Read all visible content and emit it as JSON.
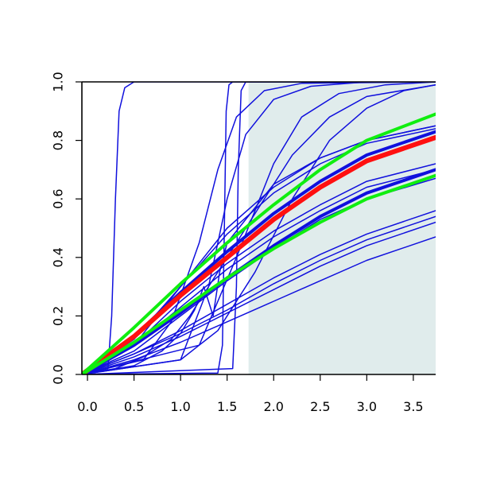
{
  "chart_data": {
    "type": "line",
    "title": "",
    "xlabel": "",
    "ylabel": "",
    "xlim": [
      -0.06,
      3.74
    ],
    "ylim": [
      0.0,
      1.0
    ],
    "x_ticks": [
      "0.0",
      "0.5",
      "1.0",
      "1.5",
      "2.0",
      "2.5",
      "3.0",
      "3.5"
    ],
    "y_ticks": [
      "0.0",
      "0.2",
      "0.4",
      "0.6",
      "0.8",
      "1.0"
    ],
    "x_tick_values": [
      0.0,
      0.5,
      1.0,
      1.5,
      2.0,
      2.5,
      3.0,
      3.5
    ],
    "y_tick_values": [
      0.0,
      0.2,
      0.4,
      0.6,
      0.8,
      1.0
    ],
    "shaded_region": {
      "x_start": 1.73,
      "x_end": 3.74,
      "y_start": 0.0,
      "y_end": 1.0,
      "color": "#e0ecec"
    },
    "colors": {
      "blue": "#1010dd",
      "red": "#ff1010",
      "green": "#10ee10"
    },
    "series": [
      {
        "color": "blue",
        "width": 1.5,
        "points": [
          [
            -0.06,
            0
          ],
          [
            0.22,
            0.02
          ],
          [
            0.26,
            0.2
          ],
          [
            0.3,
            0.6
          ],
          [
            0.34,
            0.9
          ],
          [
            0.4,
            0.98
          ],
          [
            0.5,
            1.0
          ],
          [
            3.74,
            1.0
          ]
        ]
      },
      {
        "color": "blue",
        "width": 1.5,
        "points": [
          [
            -0.06,
            0
          ],
          [
            1.4,
            0.005
          ],
          [
            1.45,
            0.1
          ],
          [
            1.47,
            0.5
          ],
          [
            1.49,
            0.9
          ],
          [
            1.52,
            0.99
          ],
          [
            1.56,
            1.0
          ],
          [
            3.74,
            1.0
          ]
        ]
      },
      {
        "color": "blue",
        "width": 1.5,
        "points": [
          [
            -0.06,
            0
          ],
          [
            1.56,
            0.02
          ],
          [
            1.6,
            0.3
          ],
          [
            1.62,
            0.7
          ],
          [
            1.65,
            0.97
          ],
          [
            1.7,
            1.0
          ],
          [
            3.74,
            1.0
          ]
        ]
      },
      {
        "color": "blue",
        "width": 1.5,
        "points": [
          [
            -0.06,
            0
          ],
          [
            1.0,
            0.05
          ],
          [
            1.3,
            0.3
          ],
          [
            1.5,
            0.6
          ],
          [
            1.7,
            0.82
          ],
          [
            2.0,
            0.94
          ],
          [
            2.4,
            0.985
          ],
          [
            3.0,
            1.0
          ],
          [
            3.74,
            1.0
          ]
        ]
      },
      {
        "color": "blue",
        "width": 1.5,
        "points": [
          [
            -0.06,
            0
          ],
          [
            0.6,
            0.05
          ],
          [
            0.9,
            0.18
          ],
          [
            1.2,
            0.45
          ],
          [
            1.4,
            0.7
          ],
          [
            1.6,
            0.88
          ],
          [
            1.9,
            0.97
          ],
          [
            2.3,
            0.995
          ],
          [
            3.74,
            1.0
          ]
        ]
      },
      {
        "color": "blue",
        "width": 1.5,
        "points": [
          [
            -0.06,
            0
          ],
          [
            1.2,
            0.1
          ],
          [
            1.6,
            0.4
          ],
          [
            2.0,
            0.72
          ],
          [
            2.3,
            0.88
          ],
          [
            2.7,
            0.96
          ],
          [
            3.2,
            0.99
          ],
          [
            3.74,
            1.0
          ]
        ]
      },
      {
        "color": "blue",
        "width": 1.5,
        "points": [
          [
            -0.06,
            0
          ],
          [
            1.0,
            0.05
          ],
          [
            1.4,
            0.15
          ],
          [
            1.8,
            0.35
          ],
          [
            2.2,
            0.6
          ],
          [
            2.6,
            0.8
          ],
          [
            3.0,
            0.91
          ],
          [
            3.4,
            0.97
          ],
          [
            3.74,
            0.99
          ]
        ]
      },
      {
        "color": "blue",
        "width": 1.5,
        "points": [
          [
            -0.06,
            0
          ],
          [
            0.5,
            0.1
          ],
          [
            1.0,
            0.3
          ],
          [
            1.5,
            0.5
          ],
          [
            2.0,
            0.64
          ],
          [
            2.5,
            0.74
          ],
          [
            3.0,
            0.8
          ],
          [
            3.74,
            0.85
          ]
        ]
      },
      {
        "color": "blue",
        "width": 1.5,
        "points": [
          [
            -0.06,
            0
          ],
          [
            0.5,
            0.12
          ],
          [
            1.0,
            0.3
          ],
          [
            1.5,
            0.48
          ],
          [
            2.0,
            0.62
          ],
          [
            2.5,
            0.72
          ],
          [
            3.0,
            0.79
          ],
          [
            3.74,
            0.84
          ]
        ]
      },
      {
        "color": "blue",
        "width": 1.5,
        "points": [
          [
            -0.06,
            0
          ],
          [
            0.5,
            0.1
          ],
          [
            1.0,
            0.25
          ],
          [
            1.5,
            0.38
          ],
          [
            2.0,
            0.49
          ],
          [
            2.5,
            0.58
          ],
          [
            3.0,
            0.66
          ],
          [
            3.74,
            0.72
          ]
        ]
      },
      {
        "color": "blue",
        "width": 1.5,
        "points": [
          [
            -0.06,
            0
          ],
          [
            0.5,
            0.1
          ],
          [
            1.0,
            0.23
          ],
          [
            1.5,
            0.36
          ],
          [
            2.0,
            0.47
          ],
          [
            2.5,
            0.56
          ],
          [
            3.0,
            0.64
          ],
          [
            3.74,
            0.7
          ]
        ]
      },
      {
        "color": "blue",
        "width": 1.5,
        "points": [
          [
            -0.06,
            0
          ],
          [
            0.5,
            0.08
          ],
          [
            1.0,
            0.2
          ],
          [
            1.5,
            0.32
          ],
          [
            2.0,
            0.43
          ],
          [
            2.5,
            0.53
          ],
          [
            3.0,
            0.6
          ],
          [
            3.74,
            0.67
          ]
        ]
      },
      {
        "color": "blue",
        "width": 1.5,
        "points": [
          [
            -0.06,
            0
          ],
          [
            0.5,
            0.07
          ],
          [
            1.0,
            0.15
          ],
          [
            1.5,
            0.24
          ],
          [
            2.0,
            0.33
          ],
          [
            2.5,
            0.41
          ],
          [
            3.0,
            0.48
          ],
          [
            3.74,
            0.56
          ]
        ]
      },
      {
        "color": "blue",
        "width": 1.5,
        "points": [
          [
            -0.06,
            0
          ],
          [
            0.5,
            0.07
          ],
          [
            1.0,
            0.14
          ],
          [
            1.5,
            0.22
          ],
          [
            2.0,
            0.31
          ],
          [
            2.5,
            0.39
          ],
          [
            3.0,
            0.46
          ],
          [
            3.74,
            0.54
          ]
        ]
      },
      {
        "color": "blue",
        "width": 1.5,
        "points": [
          [
            -0.06,
            0
          ],
          [
            0.5,
            0.06
          ],
          [
            1.0,
            0.13
          ],
          [
            1.5,
            0.21
          ],
          [
            2.0,
            0.29
          ],
          [
            2.5,
            0.37
          ],
          [
            3.0,
            0.44
          ],
          [
            3.74,
            0.52
          ]
        ]
      },
      {
        "color": "blue",
        "width": 1.5,
        "points": [
          [
            -0.06,
            0
          ],
          [
            0.5,
            0.05
          ],
          [
            1.0,
            0.11
          ],
          [
            1.5,
            0.18
          ],
          [
            2.0,
            0.25
          ],
          [
            2.5,
            0.32
          ],
          [
            3.0,
            0.39
          ],
          [
            3.74,
            0.47
          ]
        ]
      },
      {
        "color": "blue",
        "width": 1.5,
        "points": [
          [
            -0.06,
            0
          ],
          [
            0.3,
            0.02
          ],
          [
            0.6,
            0.06
          ],
          [
            0.9,
            0.12
          ],
          [
            1.1,
            0.2
          ],
          [
            1.3,
            0.3
          ],
          [
            1.5,
            0.4
          ],
          [
            1.8,
            0.55
          ],
          [
            2.2,
            0.75
          ],
          [
            2.6,
            0.88
          ],
          [
            3.0,
            0.95
          ],
          [
            3.74,
            0.99
          ]
        ]
      },
      {
        "color": "blue",
        "width": 1.5,
        "points": [
          [
            -0.06,
            0
          ],
          [
            0.5,
            0.03
          ],
          [
            0.8,
            0.08
          ],
          [
            1.0,
            0.14
          ],
          [
            1.15,
            0.22
          ],
          [
            1.25,
            0.3
          ],
          [
            1.35,
            0.2
          ],
          [
            1.42,
            0.35
          ],
          [
            1.5,
            0.45
          ],
          [
            2.0,
            0.65
          ],
          [
            2.5,
            0.74
          ],
          [
            3.0,
            0.8
          ],
          [
            3.74,
            0.85
          ]
        ]
      },
      {
        "color": "blue",
        "width": 4,
        "points": [
          [
            -0.06,
            0
          ],
          [
            0.5,
            0.13
          ],
          [
            1.0,
            0.28
          ],
          [
            1.5,
            0.42
          ],
          [
            2.0,
            0.55
          ],
          [
            2.5,
            0.66
          ],
          [
            3.0,
            0.75
          ],
          [
            3.74,
            0.83
          ]
        ]
      },
      {
        "color": "blue",
        "width": 4,
        "points": [
          [
            -0.06,
            0
          ],
          [
            0.5,
            0.1
          ],
          [
            1.0,
            0.21
          ],
          [
            1.5,
            0.33
          ],
          [
            2.0,
            0.44
          ],
          [
            2.5,
            0.54
          ],
          [
            3.0,
            0.62
          ],
          [
            3.74,
            0.7
          ]
        ]
      },
      {
        "color": "red",
        "width": 6,
        "points": [
          [
            -0.06,
            0
          ],
          [
            0.5,
            0.13
          ],
          [
            1.0,
            0.27
          ],
          [
            1.5,
            0.4
          ],
          [
            2.0,
            0.53
          ],
          [
            2.5,
            0.64
          ],
          [
            3.0,
            0.73
          ],
          [
            3.74,
            0.81
          ]
        ]
      },
      {
        "color": "green",
        "width": 4,
        "points": [
          [
            -0.06,
            0
          ],
          [
            0.5,
            0.16
          ],
          [
            1.0,
            0.31
          ],
          [
            1.5,
            0.45
          ],
          [
            2.0,
            0.58
          ],
          [
            2.5,
            0.7
          ],
          [
            3.0,
            0.8
          ],
          [
            3.74,
            0.89
          ]
        ]
      },
      {
        "color": "green",
        "width": 4,
        "points": [
          [
            -0.06,
            0
          ],
          [
            0.5,
            0.11
          ],
          [
            1.0,
            0.22
          ],
          [
            1.5,
            0.33
          ],
          [
            2.0,
            0.43
          ],
          [
            2.5,
            0.52
          ],
          [
            3.0,
            0.6
          ],
          [
            3.74,
            0.68
          ]
        ]
      }
    ]
  }
}
